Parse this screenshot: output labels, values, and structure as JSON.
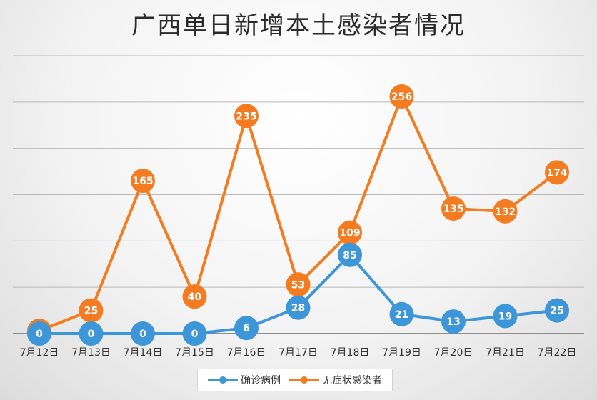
{
  "chart_data": {
    "type": "line",
    "title": "广西单日新增本土感染者情况",
    "categories": [
      "7月12日",
      "7月13日",
      "7月14日",
      "7月15日",
      "7月16日",
      "7月17日",
      "7月18日",
      "7月19日",
      "7月20日",
      "7月21日",
      "7月22日"
    ],
    "series": [
      {
        "name": "确诊病例",
        "color": "#3d96d8",
        "values": [
          0,
          0,
          0,
          0,
          6,
          28,
          85,
          21,
          13,
          19,
          25
        ]
      },
      {
        "name": "无症状感染者",
        "color": "#f47b20",
        "values": [
          3,
          25,
          165,
          40,
          235,
          53,
          109,
          256,
          135,
          132,
          174
        ]
      }
    ],
    "ylim": [
      0,
      300
    ],
    "y_grid_step": 50,
    "grid": true,
    "y_tick_labels_shown": false,
    "legend_position": "bottom"
  }
}
